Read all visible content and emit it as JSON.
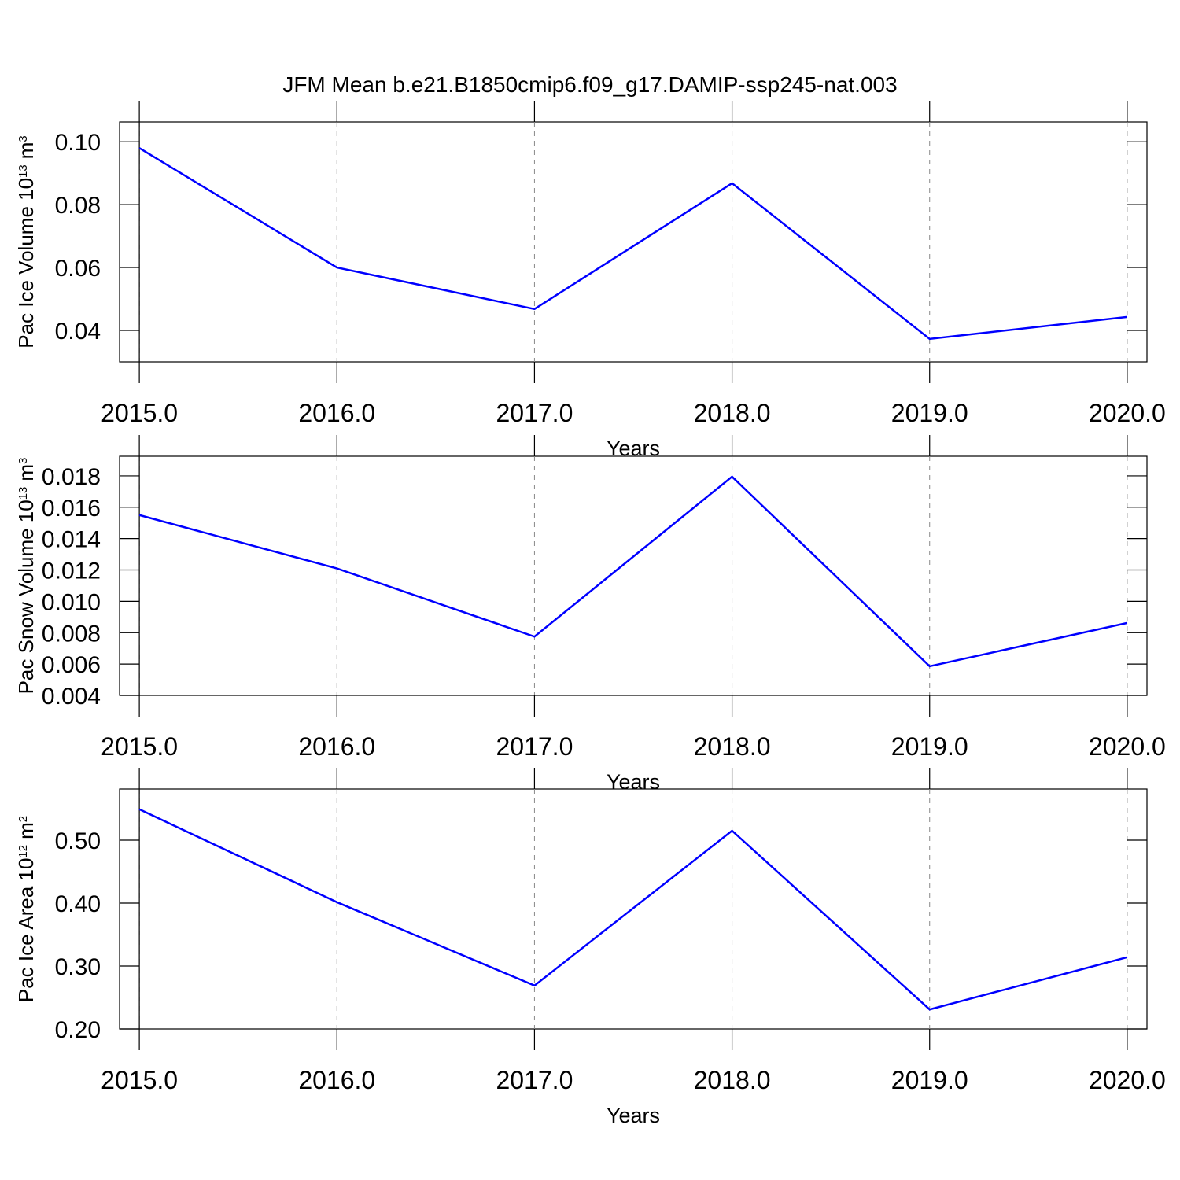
{
  "title": "JFM Mean b.e21.B1850cmip6.f09_g17.DAMIP-ssp245-nat.003",
  "chart_data": [
    {
      "type": "line",
      "ylabel": [
        "Pac Ice Volume 10",
        "13",
        "m",
        "3"
      ],
      "xlabel": "Years",
      "x": [
        2015,
        2016,
        2017,
        2018,
        2019,
        2020
      ],
      "series": [
        {
          "color": "#0000ff",
          "values": [
            0.098,
            0.06,
            0.0468,
            0.0868,
            0.0373,
            0.0443
          ]
        }
      ],
      "xlim": [
        2014.9,
        2020.1
      ],
      "xticks": [
        {
          "value": 2015,
          "label": "2015.0"
        },
        {
          "value": 2016,
          "label": "2016.0"
        },
        {
          "value": 2017,
          "label": "2017.0"
        },
        {
          "value": 2018,
          "label": "2018.0"
        },
        {
          "value": 2019,
          "label": "2019.0"
        },
        {
          "value": 2020,
          "label": "2020.0"
        }
      ],
      "ylim": [
        0.03,
        0.1063
      ],
      "yticks": [
        0.04,
        0.06,
        0.08,
        {
          "value": 0.1,
          "label": "0.10"
        }
      ],
      "grid": true
    },
    {
      "type": "line",
      "ylabel": [
        "Pac Snow Volume 10",
        "13",
        "m",
        "3"
      ],
      "xlabel": "Years",
      "x": [
        2015,
        2016,
        2017,
        2018,
        2019,
        2020
      ],
      "series": [
        {
          "color": "#0000ff",
          "values": [
            0.0155,
            0.0121,
            0.00775,
            0.01795,
            0.00586,
            0.00862
          ]
        }
      ],
      "xlim": [
        2014.9,
        2020.1
      ],
      "xticks": [
        {
          "value": 2015,
          "label": "2015.0"
        },
        {
          "value": 2016,
          "label": "2016.0"
        },
        {
          "value": 2017,
          "label": "2017.0"
        },
        {
          "value": 2018,
          "label": "2018.0"
        },
        {
          "value": 2019,
          "label": "2019.0"
        },
        {
          "value": 2020,
          "label": "2020.0"
        }
      ],
      "ylim": [
        0.004,
        0.01925
      ],
      "yticks": [
        0.004,
        0.006,
        0.008,
        {
          "value": 0.01,
          "label": "0.010"
        },
        0.012,
        0.014,
        0.016,
        0.018
      ],
      "grid": true
    },
    {
      "type": "line",
      "ylabel": [
        "Pac Ice Area 10",
        "12",
        "m",
        "2"
      ],
      "xlabel": "Years",
      "x": [
        2015,
        2016,
        2017,
        2018,
        2019,
        2020
      ],
      "series": [
        {
          "color": "#0000ff",
          "values": [
            0.549,
            0.4015,
            0.269,
            0.515,
            0.231,
            0.314
          ]
        }
      ],
      "xlim": [
        2014.9,
        2020.1
      ],
      "xticks": [
        {
          "value": 2015,
          "label": "2015.0"
        },
        {
          "value": 2016,
          "label": "2016.0"
        },
        {
          "value": 2017,
          "label": "2017.0"
        },
        {
          "value": 2018,
          "label": "2018.0"
        },
        {
          "value": 2019,
          "label": "2019.0"
        },
        {
          "value": 2020,
          "label": "2020.0"
        }
      ],
      "ylim": [
        0.2,
        0.58125
      ],
      "yticks": [
        {
          "value": 0.2,
          "label": "0.20"
        },
        {
          "value": 0.3,
          "label": "0.30"
        },
        {
          "value": 0.4,
          "label": "0.40"
        },
        {
          "value": 0.5,
          "label": "0.50"
        }
      ],
      "grid": true
    }
  ]
}
